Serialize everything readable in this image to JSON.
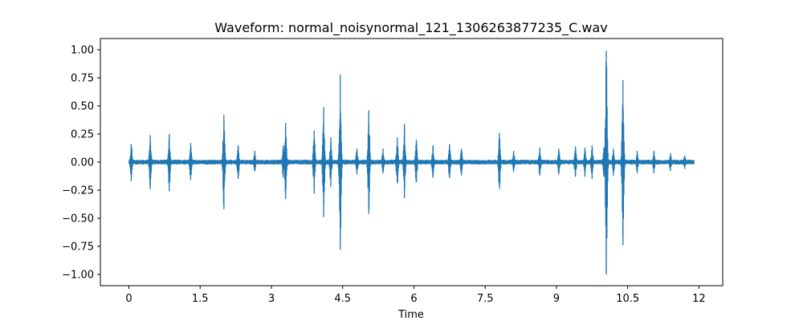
{
  "chart_data": {
    "type": "line",
    "title": "Waveform: normal_noisynormal_121_1306263877235_C.wav",
    "xlabel": "Time",
    "ylabel": "",
    "xlim": [
      -0.6,
      12.5
    ],
    "ylim": [
      -1.1,
      1.1
    ],
    "x_ticks": [
      0,
      1.5,
      3,
      4.5,
      6,
      7.5,
      9,
      10.5,
      12
    ],
    "x_tick_labels": [
      "0",
      "1.5",
      "3",
      "4.5",
      "6",
      "7.5",
      "9",
      "10.5",
      "12"
    ],
    "y_ticks": [
      1.0,
      0.75,
      0.5,
      0.25,
      0.0,
      -0.25,
      -0.5,
      -0.75,
      -1.0
    ],
    "y_tick_labels": [
      "1.00",
      "0.75",
      "0.50",
      "0.25",
      "0.00",
      "−0.25",
      "−0.50",
      "−0.75",
      "−1.00"
    ],
    "grid": false,
    "duration": 11.9,
    "color": "#1f77b4",
    "peaks": [
      {
        "t": 0.05,
        "up": 0.16,
        "down": -0.17
      },
      {
        "t": 0.45,
        "up": 0.08,
        "down": -0.08
      },
      {
        "t": 0.45,
        "up": 0.24,
        "down": -0.24
      },
      {
        "t": 0.85,
        "up": 0.25,
        "down": -0.26
      },
      {
        "t": 1.3,
        "up": 0.17,
        "down": -0.16
      },
      {
        "t": 2.0,
        "up": 0.42,
        "down": -0.42
      },
      {
        "t": 2.3,
        "up": 0.15,
        "down": -0.15
      },
      {
        "t": 2.65,
        "up": 0.1,
        "down": -0.08
      },
      {
        "t": 3.25,
        "up": 0.15,
        "down": -0.14
      },
      {
        "t": 3.3,
        "up": 0.35,
        "down": -0.33
      },
      {
        "t": 3.9,
        "up": 0.28,
        "down": -0.28
      },
      {
        "t": 4.1,
        "up": 0.49,
        "down": -0.49
      },
      {
        "t": 4.25,
        "up": 0.22,
        "down": -0.22
      },
      {
        "t": 4.45,
        "up": 0.78,
        "down": -0.78
      },
      {
        "t": 4.8,
        "up": 0.12,
        "down": -0.1
      },
      {
        "t": 5.05,
        "up": 0.46,
        "down": -0.46
      },
      {
        "t": 5.35,
        "up": 0.12,
        "down": -0.1
      },
      {
        "t": 5.65,
        "up": 0.22,
        "down": -0.19
      },
      {
        "t": 5.8,
        "up": 0.34,
        "down": -0.32
      },
      {
        "t": 6.05,
        "up": 0.2,
        "down": -0.18
      },
      {
        "t": 6.4,
        "up": 0.15,
        "down": -0.14
      },
      {
        "t": 6.75,
        "up": 0.16,
        "down": -0.14
      },
      {
        "t": 7.0,
        "up": 0.12,
        "down": -0.12
      },
      {
        "t": 7.8,
        "up": 0.26,
        "down": -0.22
      },
      {
        "t": 8.1,
        "up": 0.1,
        "down": -0.08
      },
      {
        "t": 8.65,
        "up": 0.13,
        "down": -0.12
      },
      {
        "t": 9.05,
        "up": 0.12,
        "down": -0.11
      },
      {
        "t": 9.4,
        "up": 0.14,
        "down": -0.13
      },
      {
        "t": 9.6,
        "up": 0.13,
        "down": -0.13
      },
      {
        "t": 9.75,
        "up": 0.15,
        "down": -0.15
      },
      {
        "t": 10.0,
        "up": 0.13,
        "down": -0.13
      },
      {
        "t": 10.05,
        "up": 0.99,
        "down": -1.0
      },
      {
        "t": 10.2,
        "up": 0.12,
        "down": -0.12
      },
      {
        "t": 10.4,
        "up": 0.73,
        "down": -0.74
      },
      {
        "t": 10.7,
        "up": 0.1,
        "down": -0.1
      },
      {
        "t": 11.05,
        "up": 0.1,
        "down": -0.1
      },
      {
        "t": 11.4,
        "up": 0.08,
        "down": -0.08
      },
      {
        "t": 11.7,
        "up": 0.06,
        "down": -0.06
      }
    ]
  }
}
